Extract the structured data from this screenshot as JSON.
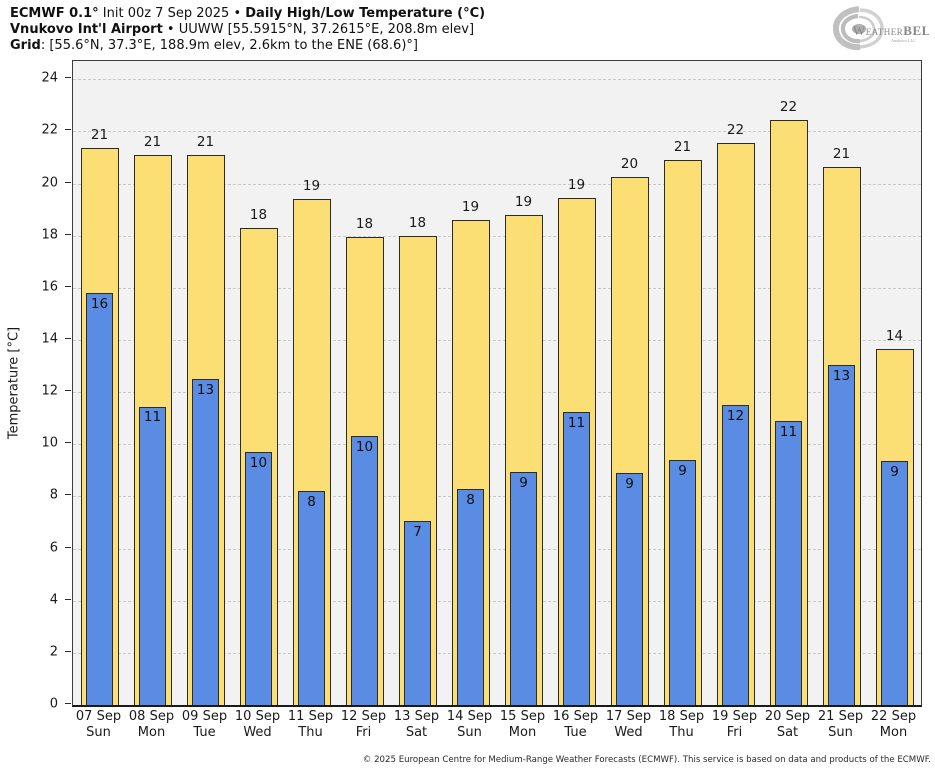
{
  "header": {
    "title_bold_1": "ECMWF 0.1°",
    "title_regular_1": " Init 00z 7 Sep 2025 • ",
    "title_bold_2": "Daily High/Low Temperature (°C)",
    "subtitle_bold": "Vnukovo Int'l Airport",
    "subtitle_regular": " • UUWW [55.5915°N, 37.2615°E, 208.8m elev]",
    "grid_bold": "Grid",
    "grid_regular": ": [55.6°N, 37.3°E, 188.9m elev, 2.6km to the ENE (68.6)°]"
  },
  "logo": {
    "text_weather": "Weather",
    "text_bell": "BELL",
    "text_sub": "Analytics LLC"
  },
  "footer": {
    "copyright": "© 2025 European Centre for Medium-Range Weather Forecasts (ECMWF). This service is based on data and products of the ECMWF."
  },
  "chart_data": {
    "type": "bar",
    "title": "ECMWF 0.1° Init 00z 7 Sep 2025 • Daily High/Low Temperature (°C)",
    "subtitle": "Vnukovo Int'l Airport • UUWW [55.5915°N, 37.2615°E, 208.8m elev]",
    "ylabel": "Temperature [°C]",
    "ylim": [
      0,
      24.7
    ],
    "yticks": [
      0,
      2,
      4,
      6,
      8,
      10,
      12,
      14,
      16,
      18,
      20,
      22,
      24
    ],
    "grid": true,
    "legend_position": "none",
    "categories": [
      "07 Sep",
      "08 Sep",
      "09 Sep",
      "10 Sep",
      "11 Sep",
      "12 Sep",
      "13 Sep",
      "14 Sep",
      "15 Sep",
      "16 Sep",
      "17 Sep",
      "18 Sep",
      "19 Sep",
      "20 Sep",
      "21 Sep",
      "22 Sep"
    ],
    "weekdays": [
      "Sun",
      "Mon",
      "Tue",
      "Wed",
      "Thu",
      "Fri",
      "Sat",
      "Sun",
      "Mon",
      "Tue",
      "Wed",
      "Thu",
      "Fri",
      "Sat",
      "Sun",
      "Mon"
    ],
    "series": [
      {
        "name": "Daily High",
        "color": "#FBDE74",
        "edge_color": "#2B2B2B",
        "values": [
          21.35,
          21.1,
          21.1,
          18.3,
          19.4,
          17.95,
          18.0,
          18.6,
          18.8,
          19.45,
          20.25,
          20.9,
          21.55,
          22.45,
          20.65,
          13.65
        ],
        "labels": [
          21,
          21,
          21,
          18,
          19,
          18,
          18,
          19,
          19,
          19,
          20,
          21,
          22,
          22,
          21,
          14
        ]
      },
      {
        "name": "Daily Low",
        "color": "#5A8CE4",
        "edge_color": "#2B2B2B",
        "values": [
          15.8,
          11.45,
          12.5,
          9.7,
          8.2,
          10.3,
          7.05,
          8.3,
          8.95,
          11.25,
          8.9,
          9.4,
          11.5,
          10.9,
          13.05,
          9.35
        ],
        "labels": [
          16,
          11,
          13,
          10,
          8,
          10,
          7,
          8,
          9,
          11,
          9,
          9,
          12,
          11,
          13,
          9
        ]
      }
    ]
  }
}
